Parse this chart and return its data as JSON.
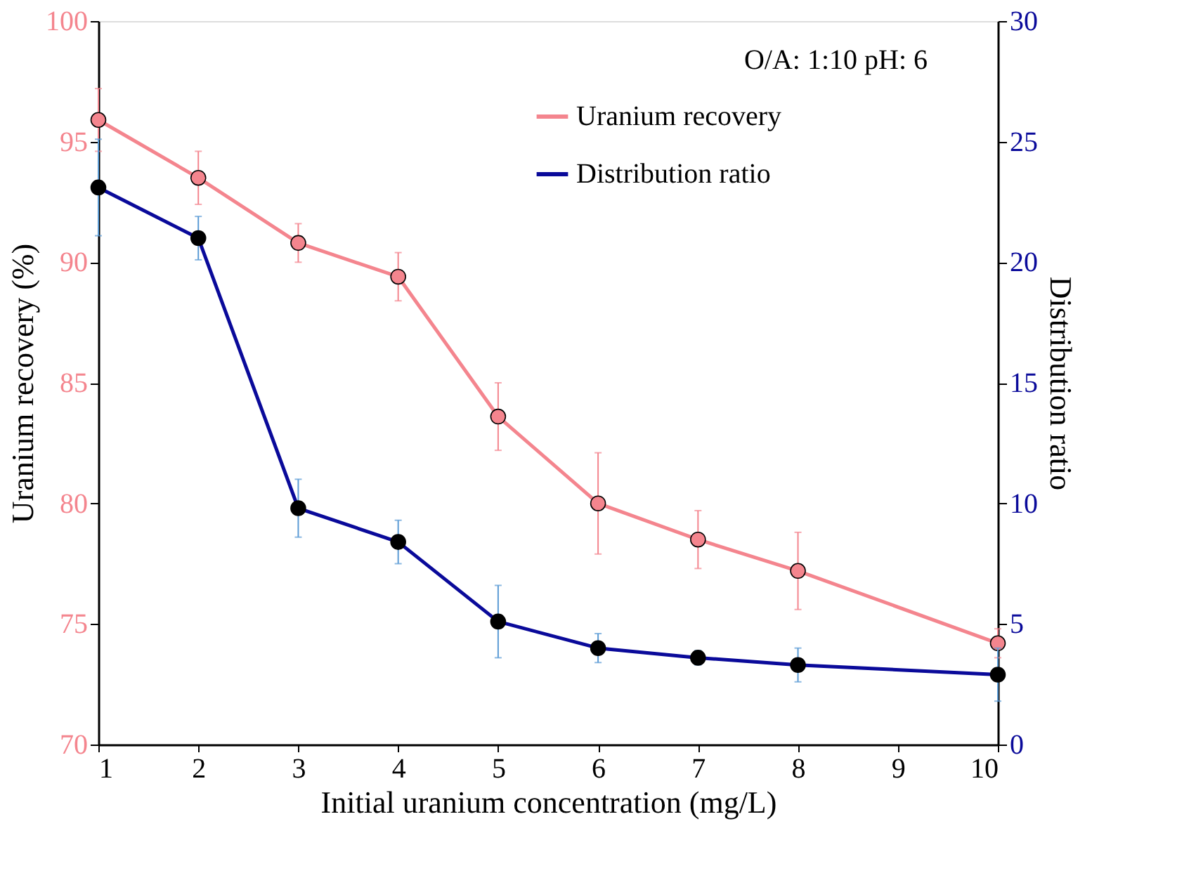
{
  "chart_data": {
    "type": "line",
    "xlabel": "Initial uranium concentration (mg/L)",
    "ylabel": "Uranium recovery (%)",
    "y2label": "Distribution ratio",
    "x": [
      1,
      2,
      3,
      4,
      5,
      6,
      7,
      8,
      10
    ],
    "series": [
      {
        "name": "Uranium recovery",
        "color": "#f4858e",
        "values": [
          95.9,
          93.5,
          90.8,
          89.4,
          83.6,
          80.0,
          78.5,
          77.2,
          74.2
        ],
        "errors": [
          1.3,
          1.1,
          0.8,
          1.0,
          1.4,
          2.1,
          1.2,
          1.6,
          0.6
        ]
      },
      {
        "name": "Distribution ratio",
        "color": "#0a0a9a",
        "axis": "y2",
        "values": [
          23.1,
          21.0,
          9.8,
          8.4,
          5.1,
          4.0,
          3.6,
          3.3,
          2.9
        ],
        "errors": [
          2.0,
          0.9,
          1.2,
          0.9,
          1.5,
          0.6,
          0.3,
          0.7,
          1.1
        ]
      }
    ],
    "xlim": [
      1,
      10
    ],
    "xticks": [
      1,
      2,
      3,
      4,
      5,
      6,
      7,
      8,
      9,
      10
    ],
    "ylim": [
      70,
      100
    ],
    "yticks": [
      70,
      75,
      80,
      85,
      90,
      95,
      100
    ],
    "y2lim": [
      0,
      30
    ],
    "y2ticks": [
      0,
      5,
      10,
      15,
      20,
      25,
      30
    ],
    "annotations": [
      "O/A: 1:10      pH:   6"
    ],
    "marker": "circle",
    "line_style": "solid",
    "legend": "top right",
    "grid": false
  }
}
